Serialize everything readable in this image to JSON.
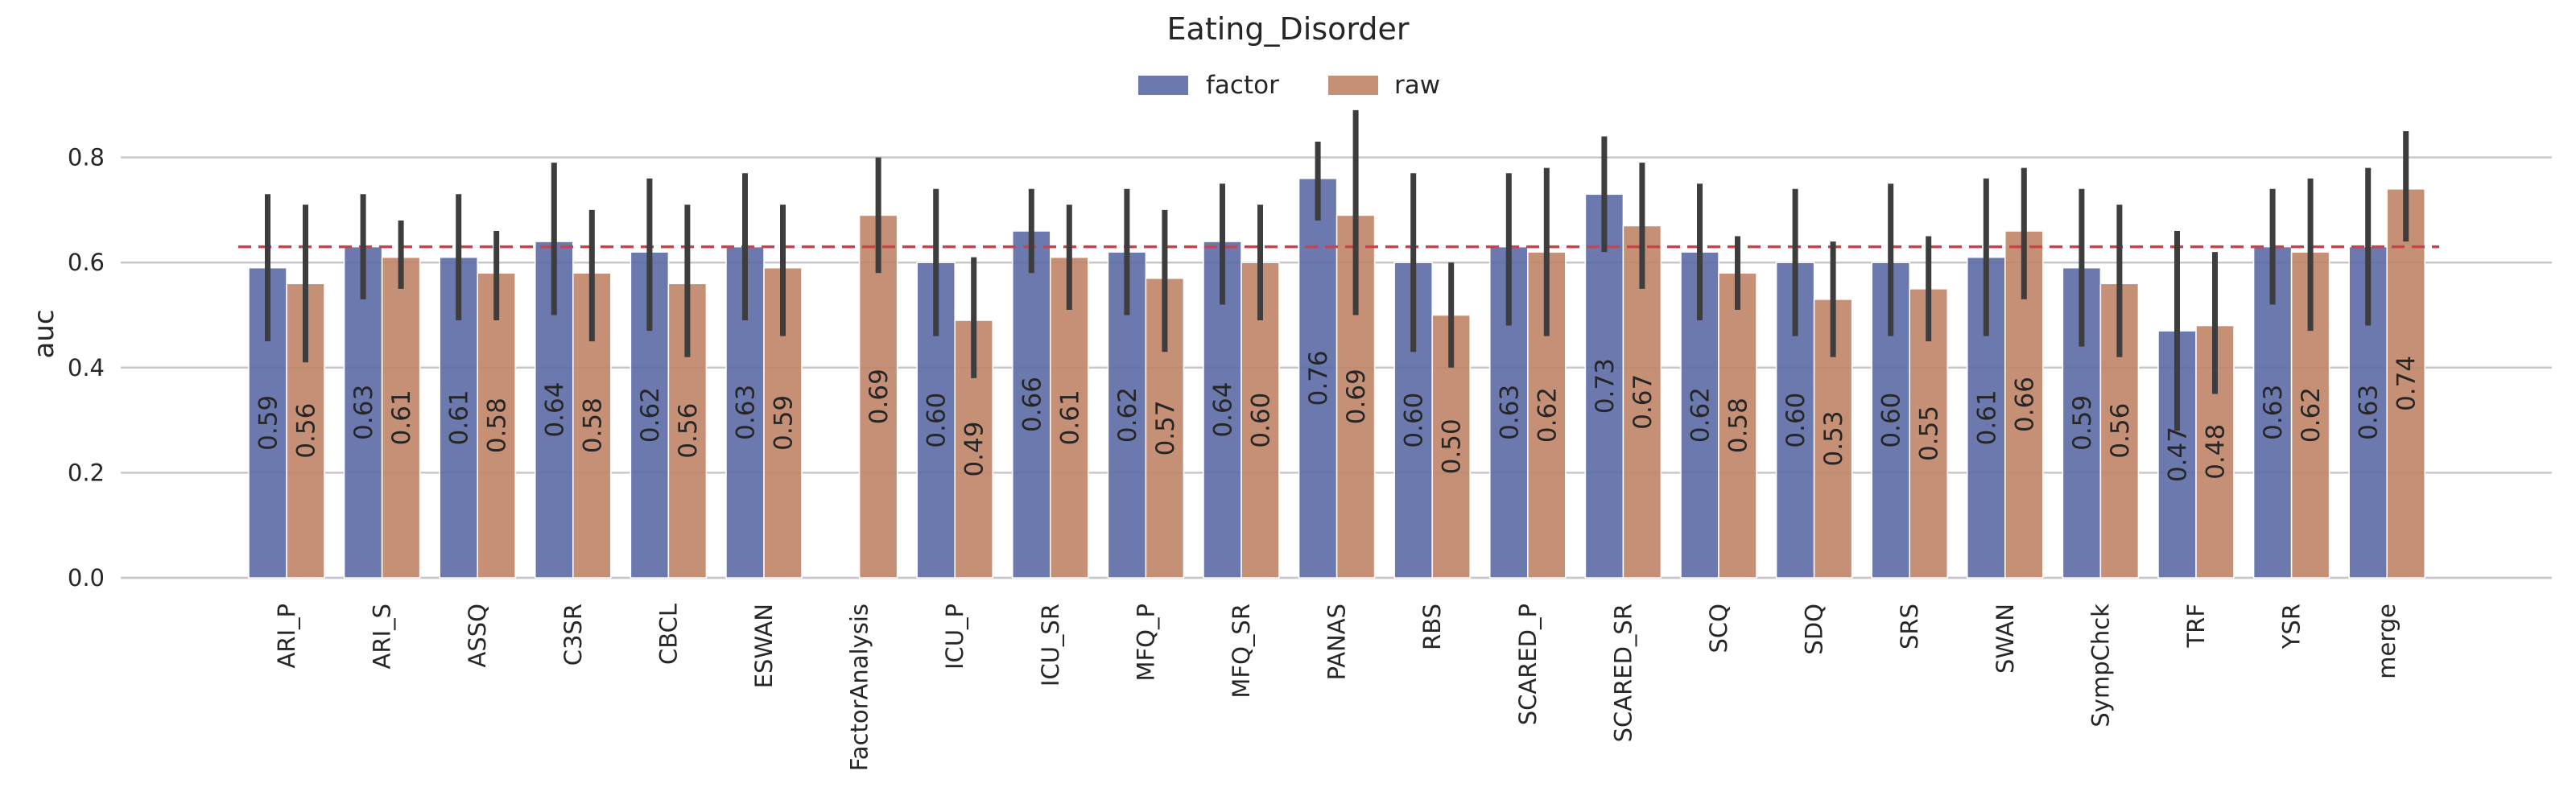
{
  "chart_data": {
    "type": "bar",
    "title": "Eating_Disorder",
    "xlabel": "",
    "ylabel": "auc",
    "ylim": [
      0,
      0.9
    ],
    "yticks": [
      "0.0",
      "0.2",
      "0.4",
      "0.6",
      "0.8"
    ],
    "grid": "horizontal",
    "legend_position": "top-center",
    "reference_line": 0.63,
    "categories": [
      "ARI_P",
      "ARI_S",
      "ASSQ",
      "C3SR",
      "CBCL",
      "ESWAN",
      "FactorAnalysis",
      "ICU_P",
      "ICU_SR",
      "MFQ_P",
      "MFQ_SR",
      "PANAS",
      "RBS",
      "SCARED_P",
      "SCARED_SR",
      "SCQ",
      "SDQ",
      "SRS",
      "SWAN",
      "SympChck",
      "TRF",
      "YSR",
      "merge"
    ],
    "series": [
      {
        "name": "factor",
        "color": "#5b6aa5",
        "values": [
          0.59,
          0.63,
          0.61,
          0.64,
          0.62,
          0.63,
          null,
          0.6,
          0.66,
          0.62,
          0.64,
          0.76,
          0.6,
          0.63,
          0.73,
          0.62,
          0.6,
          0.6,
          0.61,
          0.59,
          0.47,
          0.63,
          0.63
        ],
        "labels": [
          "0.59",
          "0.63",
          "0.61",
          "0.64",
          "0.62",
          "0.63",
          null,
          "0.60",
          "0.66",
          "0.62",
          "0.64",
          "0.76",
          "0.60",
          "0.63",
          "0.73",
          "0.62",
          "0.60",
          "0.60",
          "0.61",
          "0.59",
          "0.47",
          "0.63",
          "0.63"
        ],
        "ci": [
          [
            0.45,
            0.73
          ],
          [
            0.53,
            0.73
          ],
          [
            0.49,
            0.73
          ],
          [
            0.5,
            0.79
          ],
          [
            0.47,
            0.76
          ],
          [
            0.49,
            0.77
          ],
          null,
          [
            0.46,
            0.74
          ],
          [
            0.58,
            0.74
          ],
          [
            0.5,
            0.74
          ],
          [
            0.52,
            0.75
          ],
          [
            0.68,
            0.83
          ],
          [
            0.43,
            0.77
          ],
          [
            0.48,
            0.77
          ],
          [
            0.62,
            0.84
          ],
          [
            0.49,
            0.75
          ],
          [
            0.46,
            0.74
          ],
          [
            0.46,
            0.75
          ],
          [
            0.46,
            0.76
          ],
          [
            0.44,
            0.74
          ],
          [
            0.28,
            0.66
          ],
          [
            0.52,
            0.74
          ],
          [
            0.48,
            0.78
          ]
        ]
      },
      {
        "name": "raw",
        "color": "#c08468",
        "values": [
          0.56,
          0.61,
          0.58,
          0.58,
          0.56,
          0.59,
          0.69,
          0.49,
          0.61,
          0.57,
          0.6,
          0.69,
          0.5,
          0.62,
          0.67,
          0.58,
          0.53,
          0.55,
          0.66,
          0.56,
          0.48,
          0.62,
          0.74
        ],
        "labels": [
          "0.56",
          "0.61",
          "0.58",
          "0.58",
          "0.56",
          "0.59",
          "0.69",
          "0.49",
          "0.61",
          "0.57",
          "0.60",
          "0.69",
          "0.50",
          "0.62",
          "0.67",
          "0.58",
          "0.53",
          "0.55",
          "0.66",
          "0.56",
          "0.48",
          "0.62",
          "0.74"
        ],
        "ci": [
          [
            0.41,
            0.71
          ],
          [
            0.55,
            0.68
          ],
          [
            0.49,
            0.66
          ],
          [
            0.45,
            0.7
          ],
          [
            0.42,
            0.71
          ],
          [
            0.46,
            0.71
          ],
          [
            0.58,
            0.8
          ],
          [
            0.38,
            0.61
          ],
          [
            0.51,
            0.71
          ],
          [
            0.43,
            0.7
          ],
          [
            0.49,
            0.71
          ],
          [
            0.5,
            0.89
          ],
          [
            0.4,
            0.6
          ],
          [
            0.46,
            0.78
          ],
          [
            0.55,
            0.79
          ],
          [
            0.51,
            0.65
          ],
          [
            0.42,
            0.64
          ],
          [
            0.45,
            0.65
          ],
          [
            0.53,
            0.78
          ],
          [
            0.42,
            0.71
          ],
          [
            0.35,
            0.62
          ],
          [
            0.47,
            0.76
          ],
          [
            0.64,
            0.85
          ]
        ]
      }
    ]
  }
}
